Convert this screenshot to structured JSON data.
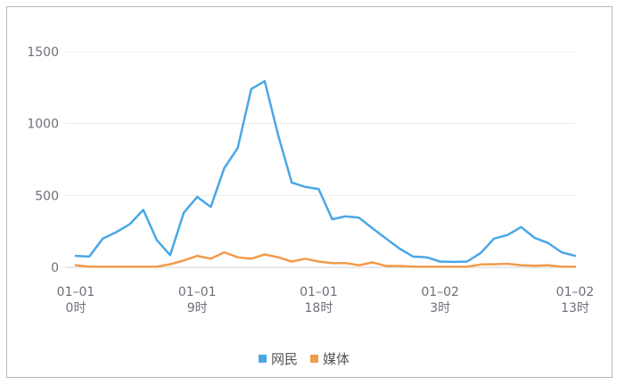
{
  "chart_data": {
    "type": "line",
    "x": [
      "01-01 0时",
      "01-01 1时",
      "01-01 2时",
      "01-01 3时",
      "01-01 4时",
      "01-01 5时",
      "01-01 6时",
      "01-01 7时",
      "01-01 8时",
      "01-01 9时",
      "01-01 10时",
      "01-01 11时",
      "01-01 12时",
      "01-01 13时",
      "01-01 14时",
      "01-01 15时",
      "01-01 16时",
      "01-01 17时",
      "01-01 18时",
      "01-01 19时",
      "01-01 20时",
      "01-01 21时",
      "01-01 22时",
      "01-01 23时",
      "01-02 0时",
      "01-02 1时",
      "01-02 2时",
      "01-02 3时",
      "01-02 4时",
      "01-02 5时",
      "01-02 6时",
      "01-02 7时",
      "01-02 8时",
      "01-02 9时",
      "01-02 10时",
      "01-02 11时",
      "01-02 12时",
      "01-02 13时"
    ],
    "series": [
      {
        "name": "网民",
        "color": "#4aa7e6",
        "values": [
          80,
          75,
          200,
          245,
          300,
          400,
          190,
          85,
          380,
          490,
          420,
          690,
          830,
          1240,
          1295,
          920,
          590,
          560,
          545,
          335,
          355,
          345,
          270,
          200,
          130,
          75,
          70,
          40,
          38,
          40,
          100,
          200,
          225,
          280,
          205,
          170,
          105,
          80
        ]
      },
      {
        "name": "媒体",
        "color": "#f29b4b",
        "values": [
          15,
          5,
          5,
          5,
          5,
          5,
          5,
          22,
          48,
          80,
          60,
          105,
          70,
          60,
          90,
          70,
          40,
          60,
          40,
          30,
          30,
          15,
          35,
          10,
          10,
          5,
          5,
          5,
          5,
          5,
          20,
          22,
          25,
          15,
          12,
          15,
          5,
          5
        ]
      }
    ],
    "ylim": [
      0,
      1500
    ],
    "yticks": [
      "0",
      "500",
      "1000",
      "1500"
    ],
    "xtick_labels": [
      {
        "index": 0,
        "line1": "01–01",
        "line2": "0时"
      },
      {
        "index": 9,
        "line1": "01–01",
        "line2": "9时"
      },
      {
        "index": 18,
        "line1": "01–01",
        "line2": "18时"
      },
      {
        "index": 27,
        "line1": "01–02",
        "line2": "3时"
      },
      {
        "index": 37,
        "line1": "01–02",
        "line2": "13时"
      }
    ],
    "grid": true,
    "legend_position": "bottom-center"
  }
}
